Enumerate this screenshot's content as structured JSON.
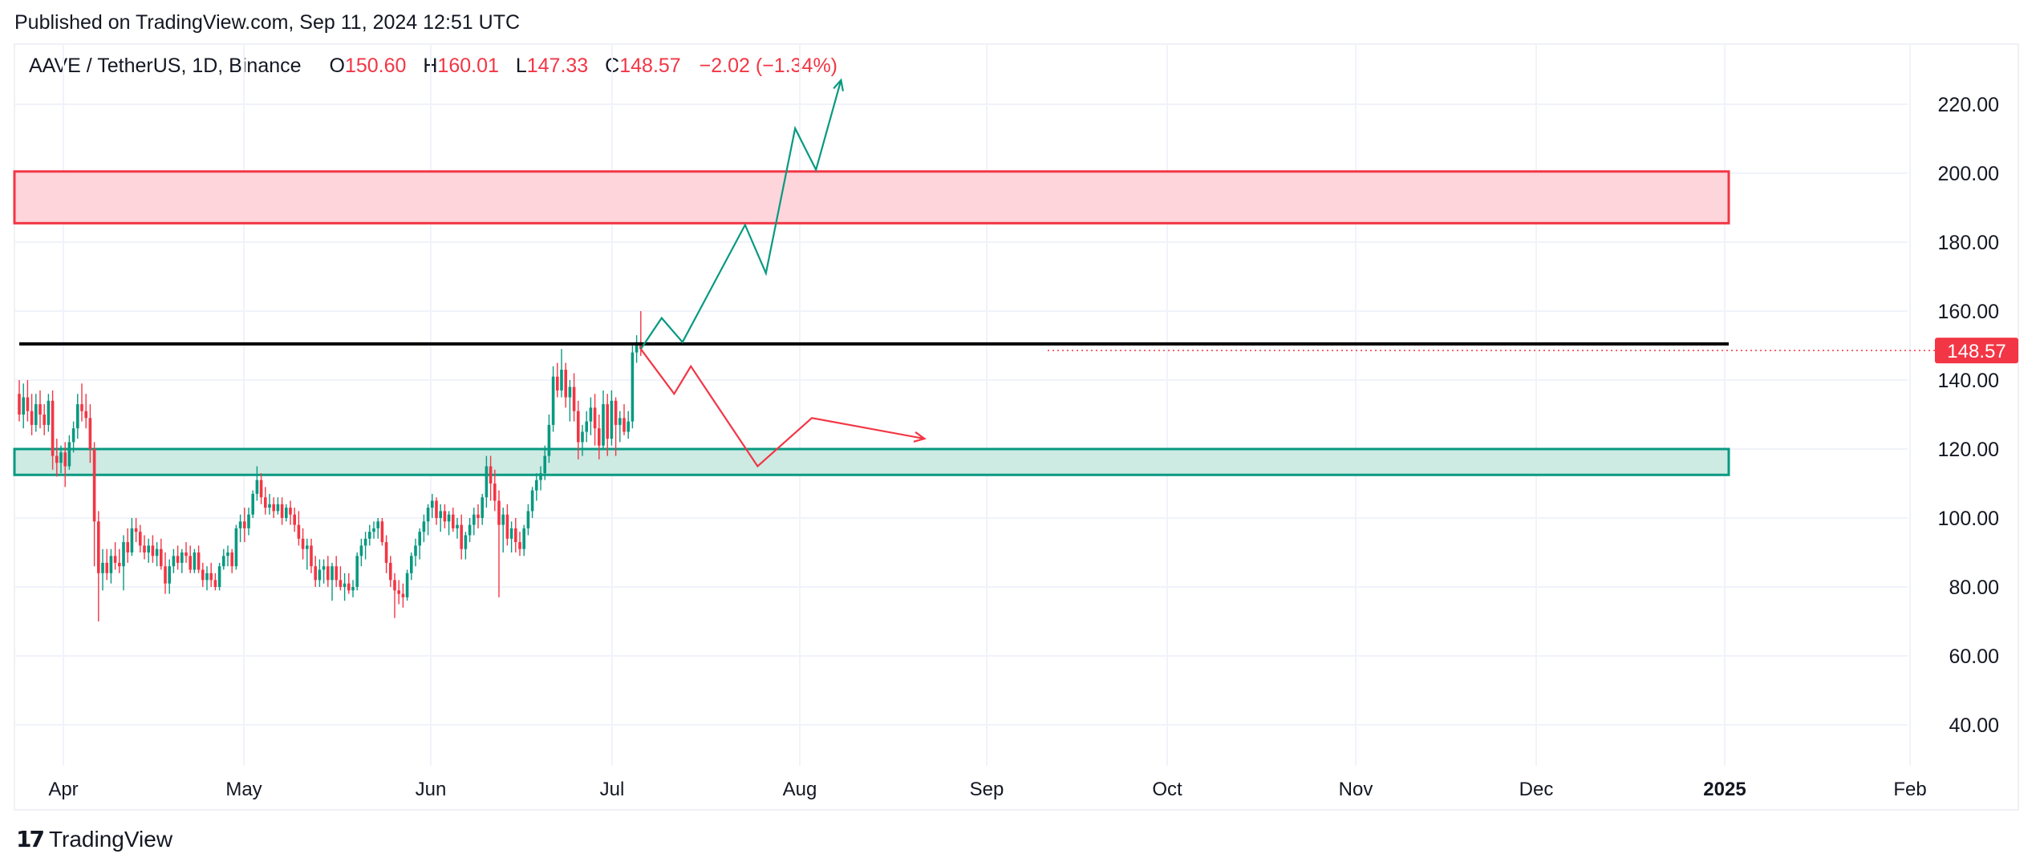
{
  "header": {
    "published": "Published on TradingView.com, Sep 11, 2024 12:51 UTC"
  },
  "legend": {
    "symbol": "AAVE / TetherUS, 1D, Binance",
    "o_label": "O",
    "o_value": "150.60",
    "h_label": "H",
    "h_value": "160.01",
    "l_label": "L",
    "l_value": "147.33",
    "c_label": "C",
    "c_value": "148.57",
    "change": "−2.02 (−1.34%)"
  },
  "footer": {
    "brand": "TradingView",
    "logo_icon": "tradingview-logo-icon"
  },
  "colors": {
    "up": "#089981",
    "down": "#f23645",
    "grid": "#f0f3fa",
    "resistance_fill": "#fdd5da",
    "resistance_border": "#f23645",
    "support_fill": "#cdeae3",
    "support_border": "#089981",
    "level_line": "#000000",
    "price_tag": "#f23645"
  },
  "chart_data": {
    "type": "candlestick",
    "y_ticks": [
      "220.00",
      "200.00",
      "180.00",
      "160.00",
      "140.00",
      "120.00",
      "100.00",
      "80.00",
      "60.00",
      "40.00"
    ],
    "y_range": [
      40,
      220
    ],
    "x_labels": [
      "Apr",
      "May",
      "Jun",
      "Jul",
      "Aug",
      "Sep",
      "Oct",
      "Nov",
      "Dec",
      "2025",
      "Feb"
    ],
    "last_price_label": "148.57",
    "last_price": 148.57,
    "zones": [
      {
        "kind": "resistance",
        "low": 185.5,
        "high": 200.5
      },
      {
        "kind": "support",
        "low": 112.5,
        "high": 120.0
      }
    ],
    "level_line": 150.5,
    "scenario_up": [
      [
        0,
        149
      ],
      [
        5,
        158
      ],
      [
        10,
        151
      ],
      [
        25,
        185
      ],
      [
        30,
        171
      ],
      [
        37,
        213
      ],
      [
        42,
        201
      ],
      [
        48,
        227
      ]
    ],
    "scenario_down": [
      [
        0,
        149
      ],
      [
        8,
        136
      ],
      [
        12,
        144
      ],
      [
        28,
        115
      ],
      [
        41,
        129
      ],
      [
        68,
        123
      ]
    ],
    "candles": [
      [
        136,
        140,
        128,
        130
      ],
      [
        130,
        139,
        126,
        135
      ],
      [
        135,
        140,
        128,
        131
      ],
      [
        131,
        136,
        124,
        127
      ],
      [
        127,
        136,
        125,
        133
      ],
      [
        133,
        137,
        126,
        130
      ],
      [
        130,
        133,
        124,
        127
      ],
      [
        127,
        136,
        125,
        134
      ],
      [
        134,
        137,
        114,
        118
      ],
      [
        118,
        123,
        112,
        116
      ],
      [
        116,
        121,
        113,
        119
      ],
      [
        119,
        122,
        109,
        115
      ],
      [
        115,
        124,
        114,
        122
      ],
      [
        122,
        128,
        119,
        126
      ],
      [
        126,
        136,
        123,
        133
      ],
      [
        133,
        139,
        128,
        131
      ],
      [
        131,
        136,
        126,
        129
      ],
      [
        129,
        133,
        116,
        120
      ],
      [
        120,
        122,
        86,
        99
      ],
      [
        99,
        102,
        70,
        84
      ],
      [
        84,
        91,
        79,
        87
      ],
      [
        87,
        91,
        82,
        84
      ],
      [
        84,
        91,
        81,
        89
      ],
      [
        89,
        93,
        85,
        87
      ],
      [
        87,
        91,
        84,
        86
      ],
      [
        86,
        95,
        79,
        93
      ],
      [
        93,
        97,
        87,
        90
      ],
      [
        90,
        100,
        89,
        97
      ],
      [
        97,
        100,
        93,
        96
      ],
      [
        96,
        98,
        90,
        92
      ],
      [
        92,
        95,
        88,
        90
      ],
      [
        90,
        94,
        87,
        92
      ],
      [
        92,
        95,
        87,
        89
      ],
      [
        89,
        93,
        86,
        91
      ],
      [
        91,
        94,
        85,
        86
      ],
      [
        86,
        90,
        78,
        81
      ],
      [
        81,
        88,
        78,
        86
      ],
      [
        86,
        91,
        84,
        89
      ],
      [
        89,
        92,
        85,
        87
      ],
      [
        87,
        91,
        84,
        90
      ],
      [
        90,
        93,
        87,
        89
      ],
      [
        89,
        92,
        84,
        85
      ],
      [
        85,
        91,
        84,
        90
      ],
      [
        90,
        92,
        84,
        85
      ],
      [
        85,
        87,
        80,
        82
      ],
      [
        82,
        86,
        79,
        84
      ],
      [
        84,
        87,
        80,
        82
      ],
      [
        82,
        84,
        79,
        80
      ],
      [
        80,
        87,
        79,
        86
      ],
      [
        86,
        91,
        85,
        89
      ],
      [
        89,
        92,
        86,
        90
      ],
      [
        90,
        91,
        84,
        86
      ],
      [
        86,
        98,
        85,
        97
      ],
      [
        97,
        101,
        93,
        99
      ],
      [
        99,
        103,
        93,
        97
      ],
      [
        97,
        103,
        95,
        101
      ],
      [
        101,
        108,
        100,
        107
      ],
      [
        107,
        115,
        105,
        111
      ],
      [
        111,
        113,
        104,
        106
      ],
      [
        106,
        109,
        101,
        103
      ],
      [
        103,
        107,
        101,
        104
      ],
      [
        104,
        106,
        100,
        102
      ],
      [
        102,
        106,
        101,
        104
      ],
      [
        104,
        106,
        98,
        100
      ],
      [
        100,
        104,
        99,
        103
      ],
      [
        103,
        105,
        98,
        101
      ],
      [
        101,
        103,
        96,
        98
      ],
      [
        98,
        102,
        92,
        94
      ],
      [
        94,
        97,
        88,
        91
      ],
      [
        91,
        94,
        85,
        92
      ],
      [
        92,
        94,
        84,
        86
      ],
      [
        86,
        89,
        80,
        82
      ],
      [
        82,
        88,
        80,
        85
      ],
      [
        85,
        88,
        81,
        86
      ],
      [
        86,
        89,
        80,
        82
      ],
      [
        82,
        87,
        76,
        86
      ],
      [
        86,
        89,
        80,
        82
      ],
      [
        82,
        86,
        79,
        80
      ],
      [
        80,
        84,
        76,
        81
      ],
      [
        81,
        84,
        78,
        79
      ],
      [
        79,
        82,
        77,
        80
      ],
      [
        80,
        90,
        79,
        89
      ],
      [
        89,
        94,
        86,
        92
      ],
      [
        92,
        96,
        88,
        94
      ],
      [
        94,
        98,
        92,
        96
      ],
      [
        96,
        99,
        94,
        97
      ],
      [
        97,
        100,
        94,
        99
      ],
      [
        99,
        100,
        92,
        93
      ],
      [
        93,
        95,
        84,
        87
      ],
      [
        87,
        89,
        80,
        82
      ],
      [
        82,
        84,
        71,
        79
      ],
      [
        79,
        82,
        75,
        78
      ],
      [
        78,
        81,
        74,
        77
      ],
      [
        77,
        85,
        76,
        84
      ],
      [
        84,
        90,
        82,
        89
      ],
      [
        89,
        94,
        86,
        92
      ],
      [
        92,
        97,
        88,
        96
      ],
      [
        96,
        101,
        93,
        99
      ],
      [
        99,
        104,
        95,
        103
      ],
      [
        103,
        107,
        100,
        105
      ],
      [
        105,
        106,
        98,
        100
      ],
      [
        100,
        104,
        96,
        102
      ],
      [
        102,
        104,
        97,
        99
      ],
      [
        99,
        102,
        95,
        101
      ],
      [
        101,
        103,
        96,
        97
      ],
      [
        97,
        100,
        94,
        98
      ],
      [
        98,
        101,
        88,
        91
      ],
      [
        91,
        96,
        88,
        95
      ],
      [
        95,
        100,
        93,
        98
      ],
      [
        98,
        103,
        95,
        101
      ],
      [
        101,
        104,
        97,
        100
      ],
      [
        100,
        107,
        98,
        106
      ],
      [
        106,
        118,
        103,
        115
      ],
      [
        115,
        118,
        105,
        110
      ],
      [
        110,
        114,
        102,
        105
      ],
      [
        105,
        108,
        77,
        98
      ],
      [
        98,
        103,
        90,
        101
      ],
      [
        101,
        104,
        92,
        94
      ],
      [
        94,
        99,
        90,
        97
      ],
      [
        97,
        100,
        90,
        93
      ],
      [
        93,
        96,
        89,
        91
      ],
      [
        91,
        98,
        89,
        97
      ],
      [
        97,
        104,
        95,
        102
      ],
      [
        102,
        109,
        100,
        108
      ],
      [
        108,
        113,
        105,
        111
      ],
      [
        111,
        115,
        108,
        113
      ],
      [
        113,
        121,
        111,
        118
      ],
      [
        118,
        130,
        116,
        127
      ],
      [
        127,
        144,
        125,
        141
      ],
      [
        141,
        145,
        135,
        137
      ],
      [
        137,
        149,
        135,
        143
      ],
      [
        143,
        145,
        132,
        135
      ],
      [
        135,
        140,
        128,
        138
      ],
      [
        138,
        142,
        128,
        131
      ],
      [
        131,
        134,
        117,
        122
      ],
      [
        122,
        127,
        118,
        125
      ],
      [
        125,
        131,
        122,
        128
      ],
      [
        128,
        135,
        124,
        132
      ],
      [
        132,
        136,
        121,
        126
      ],
      [
        126,
        130,
        117,
        121
      ],
      [
        121,
        137,
        120,
        133
      ],
      [
        133,
        136,
        118,
        123
      ],
      [
        123,
        137,
        121,
        134
      ],
      [
        134,
        135,
        118,
        127
      ],
      [
        127,
        131,
        122,
        129
      ],
      [
        129,
        133,
        124,
        125
      ],
      [
        125,
        131,
        123,
        128
      ],
      [
        128,
        150,
        126,
        148
      ],
      [
        148,
        153,
        145,
        151
      ],
      [
        151,
        160,
        147,
        149
      ]
    ]
  }
}
